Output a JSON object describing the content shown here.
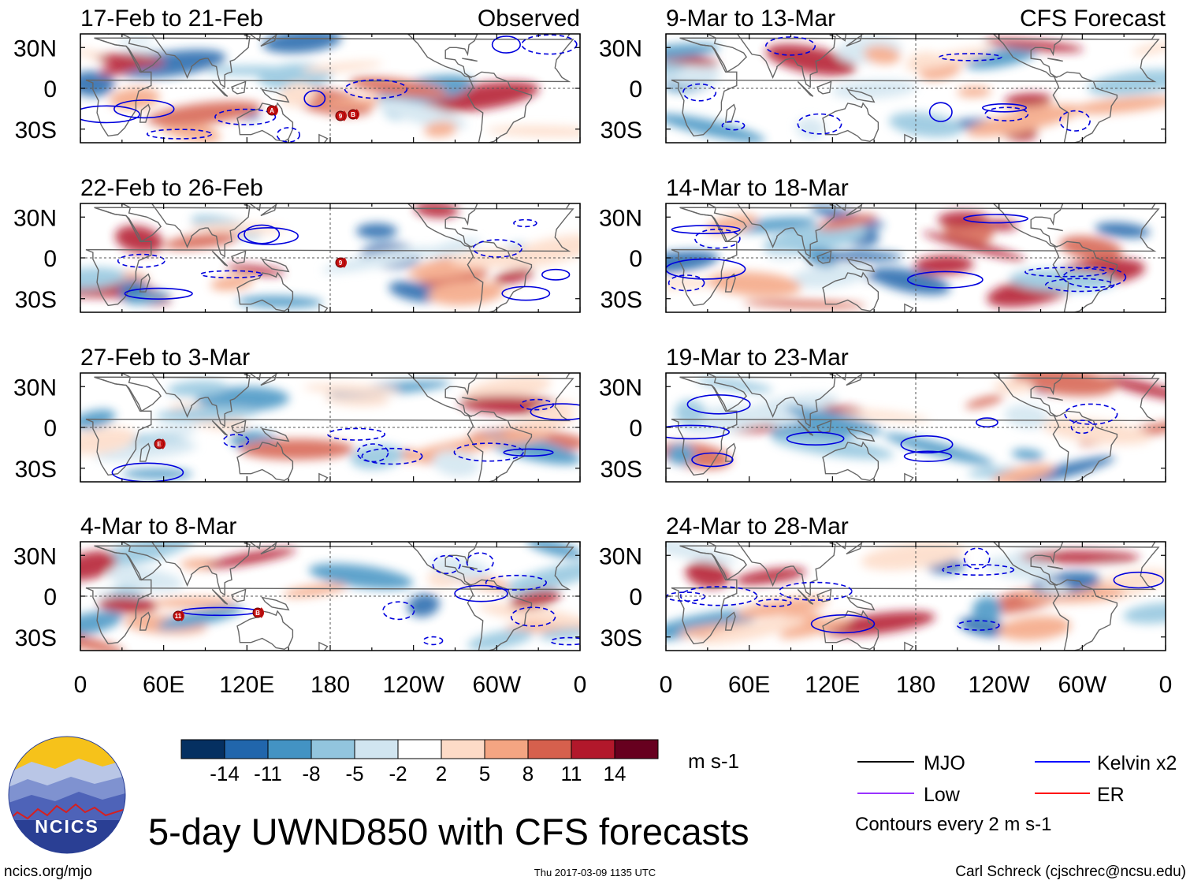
{
  "title": "5-day UWND850 with CFS forecasts",
  "site": "ncics.org/mjo",
  "timestamp": "Thu 2017-03-09 1135 UTC",
  "credit": "Carl Schreck (cjschrec@ncsu.edu)",
  "logo_text": "NCICS",
  "left_header": "Observed",
  "right_header": "CFS Forecast",
  "panels_left": [
    {
      "period": "17-Feb to 21-Feb"
    },
    {
      "period": "22-Feb to 26-Feb"
    },
    {
      "period": "27-Feb to 3-Mar"
    },
    {
      "period": "4-Mar to 8-Mar"
    }
  ],
  "panels_right": [
    {
      "period": "9-Mar to 13-Mar"
    },
    {
      "period": "14-Mar to 18-Mar"
    },
    {
      "period": "19-Mar to 23-Mar"
    },
    {
      "period": "24-Mar to 28-Mar"
    }
  ],
  "lat_labels": [
    "30N",
    "0",
    "30S"
  ],
  "lon_labels": [
    "0",
    "60E",
    "120E",
    "180",
    "120W",
    "60W",
    "0"
  ],
  "colorbar": {
    "units": "m s-1",
    "ticks": [
      "-14",
      "-11",
      "-8",
      "-5",
      "-2",
      "2",
      "5",
      "8",
      "11",
      "14"
    ],
    "colors": [
      "#053061",
      "#2166ac",
      "#4393c3",
      "#92c5de",
      "#d1e5f0",
      "#ffffff",
      "#fddbc7",
      "#f4a582",
      "#d6604d",
      "#b2182b",
      "#67001f"
    ]
  },
  "legend": {
    "items": [
      {
        "label": "MJO",
        "color": "#000000"
      },
      {
        "label": "Kelvin x2",
        "color": "#0000ff"
      },
      {
        "label": "Low",
        "color": "#9933ff"
      },
      {
        "label": "ER",
        "color": "#ff0000"
      }
    ],
    "note": "Contours every 2 m s-1"
  },
  "storm_markers": [
    {
      "panel": 0,
      "label": "A"
    },
    {
      "panel": 0,
      "label": "9"
    },
    {
      "panel": 0,
      "label": "B"
    },
    {
      "panel": 1,
      "label": "9"
    },
    {
      "panel": 2,
      "label": "E"
    },
    {
      "panel": 3,
      "label": "11"
    },
    {
      "panel": 3,
      "label": "B"
    }
  ]
}
